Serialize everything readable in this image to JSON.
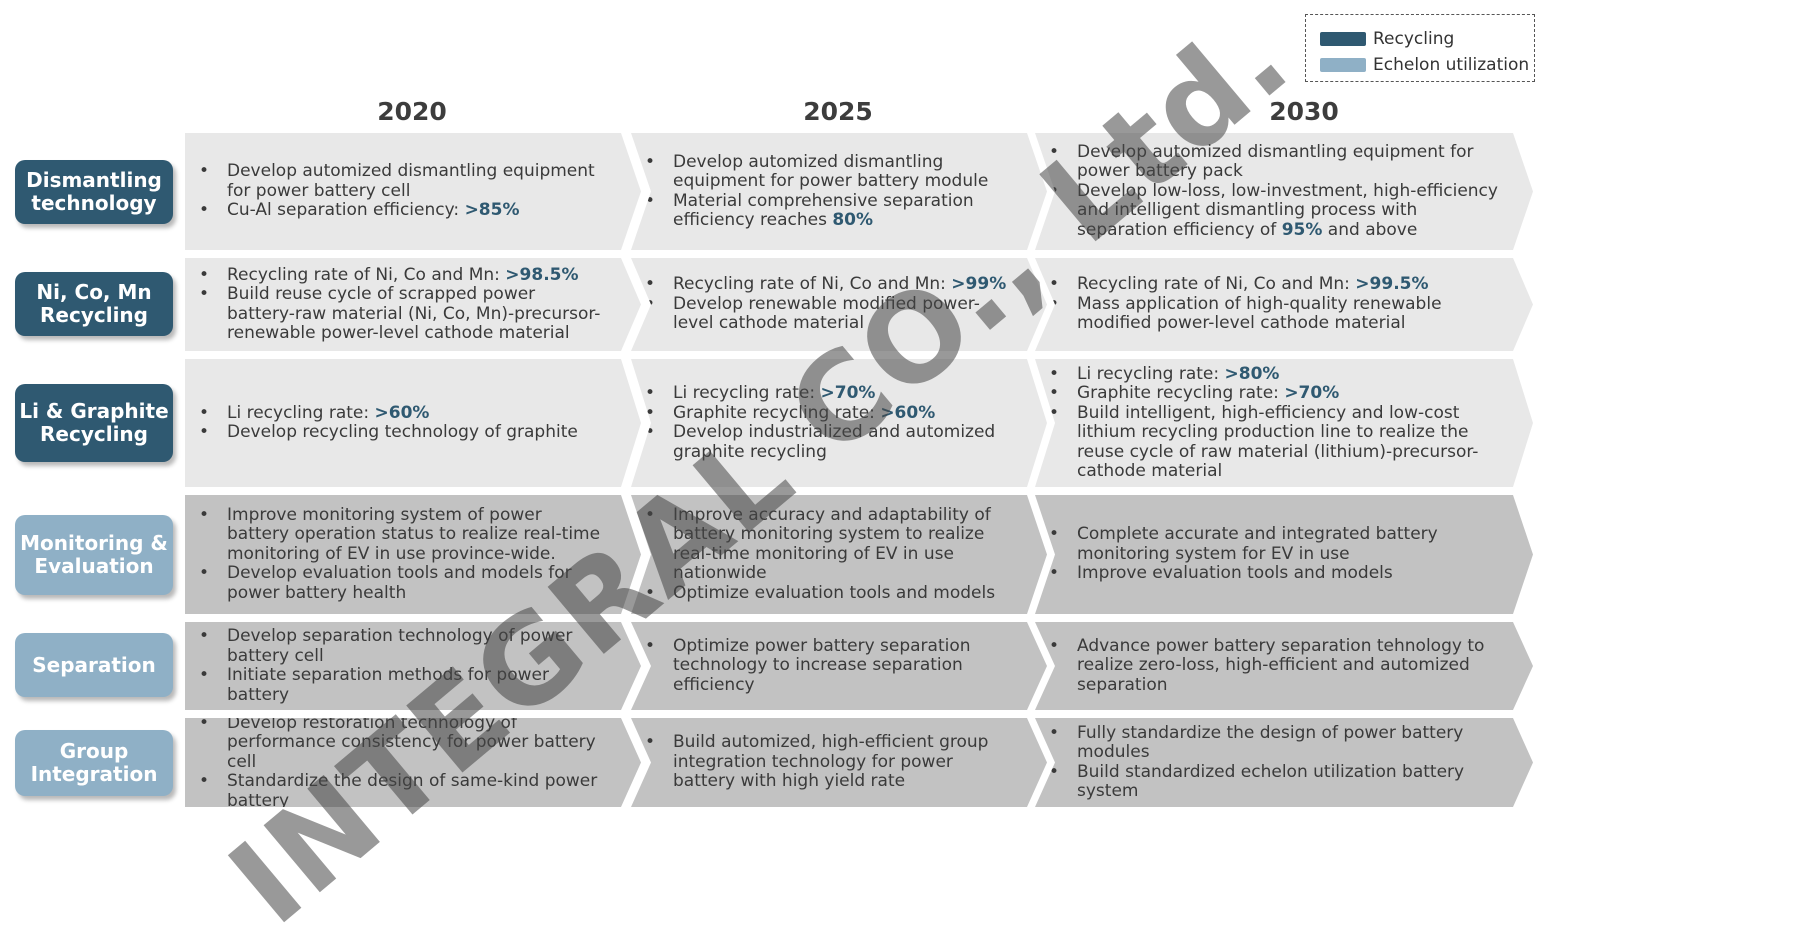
{
  "legend": {
    "recycling_label": "Recycling",
    "echelon_label": "Echelon utilization",
    "recycling_color": "#2f5971",
    "echelon_color": "#8fb0c6"
  },
  "years": [
    "2020",
    "2025",
    "2030"
  ],
  "watermark": "INTEGRAL CO., Ltd.",
  "rows": [
    {
      "label": "Dismantling technology",
      "category": "Recycling",
      "cells": [
        [
          [
            {
              "t": "Develop automized dismantling equipment for power battery cell"
            }
          ],
          [
            {
              "t": "Cu-Al separation efficiency: "
            },
            {
              "t": ">85%",
              "b": true
            }
          ]
        ],
        [
          [
            {
              "t": "Develop automized dismantling equipment for power battery module"
            }
          ],
          [
            {
              "t": "Material comprehensive separation efficiency reaches "
            },
            {
              "t": "80%",
              "b": true
            }
          ]
        ],
        [
          [
            {
              "t": "Develop automized dismantling equipment for power battery pack"
            }
          ],
          [
            {
              "t": "Develop low-loss, low-investment, high-efficiency and intelligent dismantling process with separation efficiency of "
            },
            {
              "t": "95%",
              "b": true
            },
            {
              "t": " and above"
            }
          ]
        ]
      ]
    },
    {
      "label": "Ni, Co, Mn Recycling",
      "category": "Recycling",
      "cells": [
        [
          [
            {
              "t": "Recycling rate of Ni, Co and Mn: "
            },
            {
              "t": ">98.5%",
              "b": true
            }
          ],
          [
            {
              "t": "Build reuse cycle of scrapped power battery-raw material (Ni, Co, Mn)-precursor-renewable power-level cathode material"
            }
          ]
        ],
        [
          [
            {
              "t": "Recycling rate of Ni, Co and Mn: "
            },
            {
              "t": ">99%",
              "b": true
            }
          ],
          [
            {
              "t": "Develop renewable modified power-level cathode material"
            }
          ]
        ],
        [
          [
            {
              "t": "Recycling rate of Ni, Co and Mn: "
            },
            {
              "t": ">99.5%",
              "b": true
            }
          ],
          [
            {
              "t": "Mass application of high-quality renewable modified power-level cathode material"
            }
          ]
        ]
      ]
    },
    {
      "label": "Li & Graphite Recycling",
      "category": "Recycling",
      "cells": [
        [
          [
            {
              "t": "Li recycling rate: "
            },
            {
              "t": ">60%",
              "b": true
            }
          ],
          [
            {
              "t": "Develop recycling technology of graphite"
            }
          ]
        ],
        [
          [
            {
              "t": "Li recycling rate: "
            },
            {
              "t": ">70%",
              "b": true
            }
          ],
          [
            {
              "t": "Graphite recycling rate: "
            },
            {
              "t": ">60%",
              "b": true
            }
          ],
          [
            {
              "t": "Develop industrialized and automized graphite recycling"
            }
          ]
        ],
        [
          [
            {
              "t": "Li recycling rate: "
            },
            {
              "t": ">80%",
              "b": true
            }
          ],
          [
            {
              "t": "Graphite recycling rate: "
            },
            {
              "t": ">70%",
              "b": true
            }
          ],
          [
            {
              "t": "Build intelligent, high-efficiency and low-cost lithium recycling production line to realize the reuse cycle of raw material (lithium)-precursor-cathode material"
            }
          ]
        ]
      ]
    },
    {
      "label": "Monitoring & Evaluation",
      "category": "Echelon utilization",
      "cells": [
        [
          [
            {
              "t": "Improve monitoring system of power battery operation status to realize real-time monitoring of EV in use province-wide."
            }
          ],
          [
            {
              "t": "Develop evaluation tools and models for power battery health"
            }
          ]
        ],
        [
          [
            {
              "t": "Improve accuracy and adaptability of battery monitoring system to realize real-time monitoring of EV in use nationwide"
            }
          ],
          [
            {
              "t": "Optimize evaluation tools and models"
            }
          ]
        ],
        [
          [
            {
              "t": "Complete accurate and integrated battery monitoring system for EV in use"
            }
          ],
          [
            {
              "t": "Improve evaluation tools and models"
            }
          ]
        ]
      ]
    },
    {
      "label": "Separation",
      "category": "Echelon utilization",
      "cells": [
        [
          [
            {
              "t": "Develop separation technology of power battery cell"
            }
          ],
          [
            {
              "t": "Initiate separation methods for power battery"
            }
          ]
        ],
        [
          [
            {
              "t": "Optimize power battery separation technology to increase separation efficiency"
            }
          ]
        ],
        [
          [
            {
              "t": "Advance power battery separation tehnology to realize zero-loss, high-efficient and automized separation"
            }
          ]
        ]
      ]
    },
    {
      "label": "Group Integration",
      "category": "Echelon utilization",
      "cells": [
        [
          [
            {
              "t": "Develop restoration technology of performance consistency for power battery cell"
            }
          ],
          [
            {
              "t": "Standardize the design of same-kind power battery"
            }
          ]
        ],
        [
          [
            {
              "t": "Build automized, high-efficient group integration technology for power battery with high yield rate"
            }
          ]
        ],
        [
          [
            {
              "t": "Fully standardize the design of power battery modules"
            }
          ],
          [
            {
              "t": "Build standardized echelon utilization battery system"
            }
          ]
        ]
      ]
    }
  ]
}
